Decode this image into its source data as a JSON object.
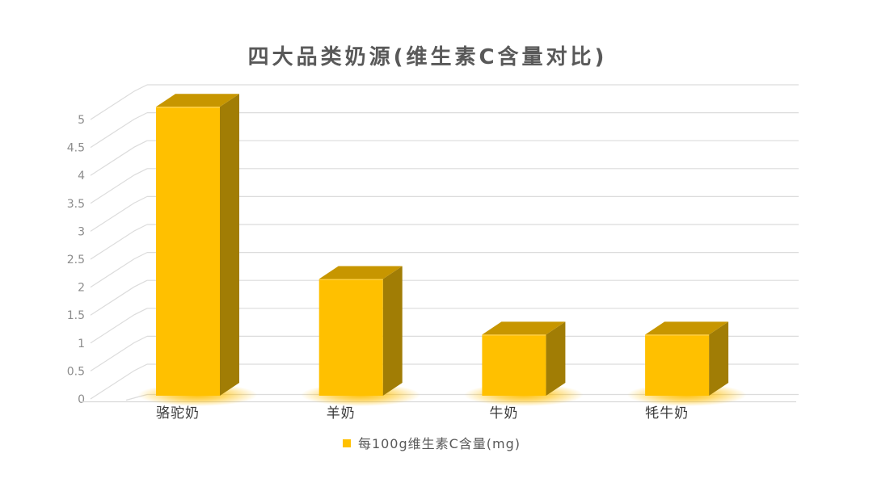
{
  "page": {
    "background": "#FFFFFF"
  },
  "chart": {
    "title": "四大品类奶源(维生素C含量对比)",
    "legend": {
      "label": "每100g维生素C含量(mg)",
      "marker_color": "#FFC000"
    }
  },
  "chart_data": {
    "type": "bar",
    "style": "3d-cube-with-bottom-glow",
    "title": "四大品类奶源(维生素C含量对比)",
    "categories": [
      "骆驼奶",
      "羊奶",
      "牛奶",
      "牦牛奶"
    ],
    "series": [
      {
        "name": "每100g维生素C含量(mg)",
        "values": [
          5.2,
          2.1,
          1.1,
          1.1
        ]
      }
    ],
    "xlabel": "",
    "ylabel": "",
    "ylim": [
      0,
      5.5
    ],
    "yticks": [
      0,
      0.5,
      1,
      1.5,
      2,
      2.5,
      3,
      3.5,
      4,
      4.5,
      5
    ],
    "ytick_labels": [
      "0",
      "0.5",
      "1",
      "1.5",
      "2",
      "2.5",
      "3",
      "3.5",
      "4",
      "4.5",
      "5"
    ],
    "grid": true,
    "legend_position": "bottom",
    "colors": {
      "bar_front": "#FFC000",
      "bar_side": "#A17D05",
      "bar_top": "#C79600",
      "bar_edge_highlight": "#FFDA6B",
      "glow": "#FFBE00",
      "gridline": "#DCDCDC",
      "axis_line": "#D9D9D9",
      "ytick_text": "#8C8C8C",
      "xtick_text": "#3A3A3A",
      "title_text": "#595959"
    }
  }
}
